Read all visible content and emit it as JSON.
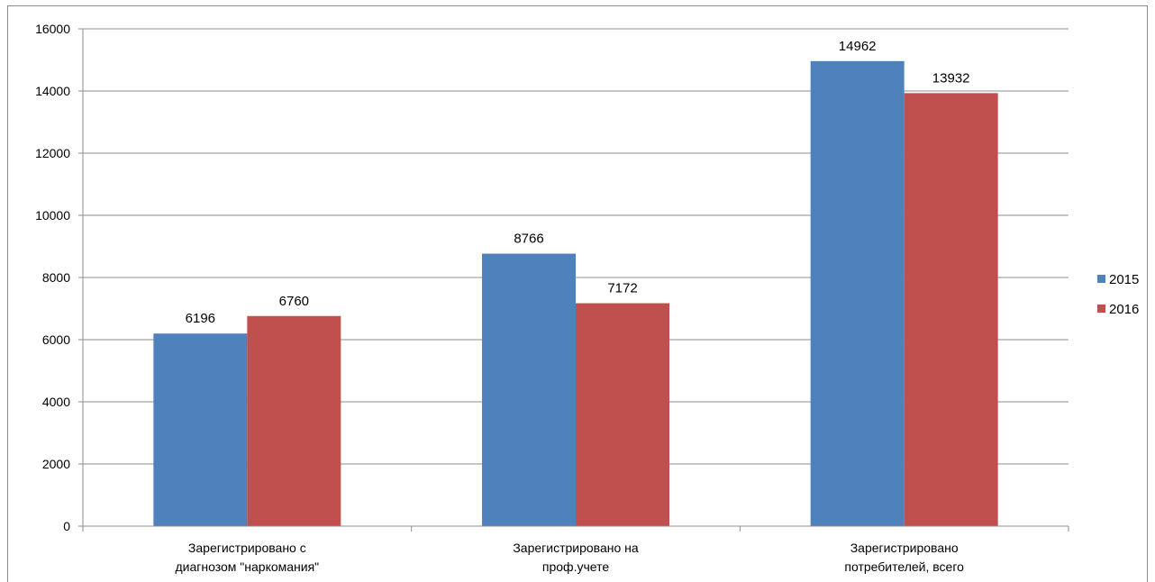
{
  "chart_data": {
    "type": "bar",
    "categories": [
      [
        "Зарегистрировано с",
        "диагнозом \"наркомания\""
      ],
      [
        "Зарегистрировано на",
        "проф.учете"
      ],
      [
        "Зарегистрировано",
        "потребителей, всего"
      ]
    ],
    "series": [
      {
        "name": "2015",
        "color": "#4f81bd",
        "values": [
          6196,
          8766,
          14962
        ]
      },
      {
        "name": "2016",
        "color": "#c0504d",
        "values": [
          6760,
          7172,
          13932
        ]
      }
    ],
    "ylim": [
      0,
      16000
    ],
    "yticks": [
      0,
      2000,
      4000,
      6000,
      8000,
      10000,
      12000,
      14000,
      16000
    ],
    "grid": true,
    "legend_position": "right"
  }
}
